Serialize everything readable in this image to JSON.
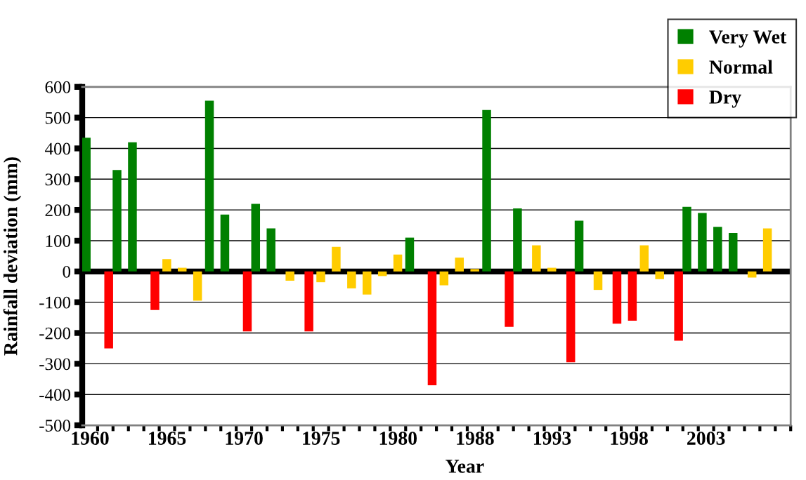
{
  "chart_data": {
    "type": "bar",
    "xlabel": "Year",
    "ylabel": "Rainfall deviation (mm)",
    "categories": [
      "1960",
      null,
      null,
      null,
      null,
      "1965",
      null,
      null,
      null,
      null,
      "1970",
      null,
      null,
      null,
      null,
      "1975",
      null,
      null,
      null,
      null,
      "1980",
      null,
      null,
      null,
      null,
      "1988",
      null,
      null,
      null,
      null,
      "1993",
      null,
      null,
      null,
      null,
      "1998",
      null,
      null,
      null,
      null,
      "2003",
      null,
      null,
      null,
      null,
      null
    ],
    "series": [
      {
        "name": "Very Wet",
        "color": "#008000",
        "values": [
          435,
          null,
          330,
          420,
          null,
          null,
          null,
          null,
          555,
          185,
          null,
          220,
          140,
          null,
          null,
          null,
          null,
          null,
          null,
          null,
          null,
          110,
          null,
          null,
          null,
          null,
          525,
          null,
          205,
          null,
          null,
          null,
          165,
          null,
          null,
          null,
          null,
          null,
          null,
          210,
          190,
          145,
          125,
          null,
          null,
          null
        ]
      },
      {
        "name": "Normal",
        "color": "#ffcc00",
        "values": [
          null,
          null,
          null,
          null,
          null,
          40,
          12,
          -95,
          null,
          null,
          null,
          null,
          null,
          -30,
          null,
          -35,
          80,
          -55,
          -75,
          -15,
          55,
          null,
          null,
          -45,
          45,
          8,
          null,
          null,
          null,
          85,
          12,
          null,
          null,
          -60,
          null,
          null,
          85,
          -25,
          null,
          null,
          null,
          null,
          null,
          -20,
          140,
          null
        ]
      },
      {
        "name": "Dry",
        "color": "#ff0000",
        "values": [
          null,
          -250,
          null,
          null,
          -125,
          null,
          null,
          null,
          null,
          null,
          -195,
          null,
          null,
          null,
          -195,
          null,
          null,
          null,
          null,
          null,
          null,
          null,
          -370,
          null,
          null,
          null,
          null,
          -180,
          null,
          null,
          null,
          -295,
          null,
          null,
          -170,
          -160,
          null,
          null,
          -225,
          null,
          null,
          null,
          null,
          null,
          null,
          null
        ]
      }
    ],
    "ylim": [
      -500,
      600
    ],
    "yticks": [
      -500,
      -400,
      -300,
      -200,
      -100,
      0,
      100,
      200,
      300,
      400,
      500,
      600
    ],
    "grid": "y",
    "legend": "top right"
  }
}
